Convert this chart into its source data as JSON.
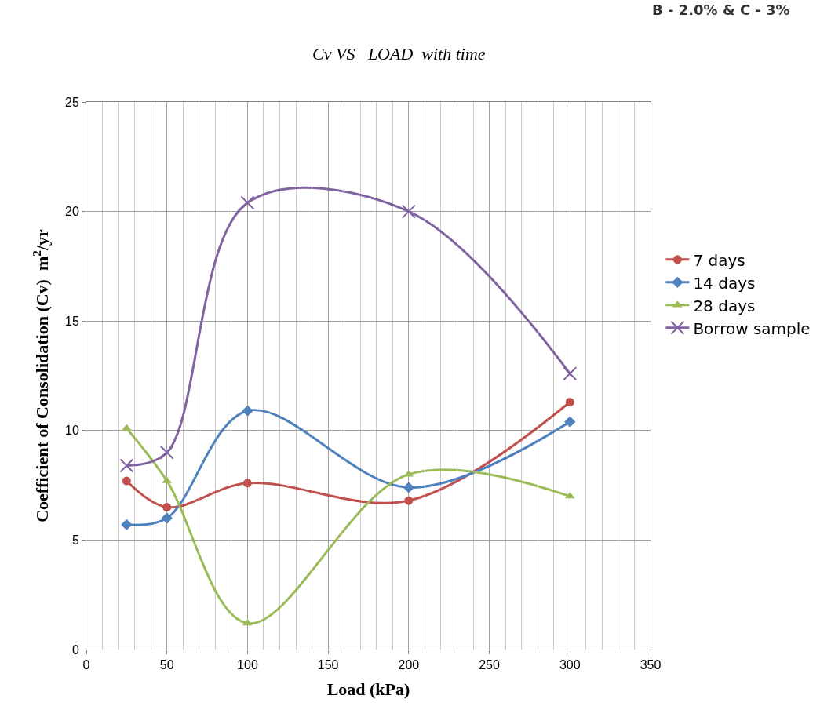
{
  "chart_data": {
    "type": "line",
    "title": "Cv VS   LOAD  with time",
    "xlabel": "Load (kPa)",
    "ylabel": "Coefficient of Consolidation (Cv)  m$^{2}$/yr",
    "annotations": [
      "B - 2.0% & C - 3%"
    ],
    "x": [
      25,
      50,
      100,
      200,
      300
    ],
    "series": [
      {
        "name": "7 days",
        "color": "#c0504d",
        "marker": "circle",
        "values": [
          7.7,
          6.5,
          7.6,
          6.8,
          11.3
        ]
      },
      {
        "name": "14 days",
        "color": "#4f81bd",
        "marker": "diamond",
        "values": [
          5.7,
          6.0,
          10.9,
          7.4,
          10.4
        ]
      },
      {
        "name": "28 days",
        "color": "#9bbb59",
        "marker": "triangle",
        "values": [
          10.1,
          7.7,
          1.2,
          8.0,
          7.0
        ]
      },
      {
        "name": "Borrow sample",
        "color": "#8064a2",
        "marker": "cross",
        "values": [
          8.4,
          9.0,
          20.4,
          20.0,
          12.6
        ]
      }
    ],
    "xlim": [
      0,
      350
    ],
    "xticks": [
      0,
      50,
      100,
      150,
      200,
      250,
      300,
      350
    ],
    "ylim": [
      0,
      25
    ],
    "yticks": [
      0,
      5,
      10,
      15,
      20,
      25
    ],
    "grid": true,
    "legend": "right"
  }
}
